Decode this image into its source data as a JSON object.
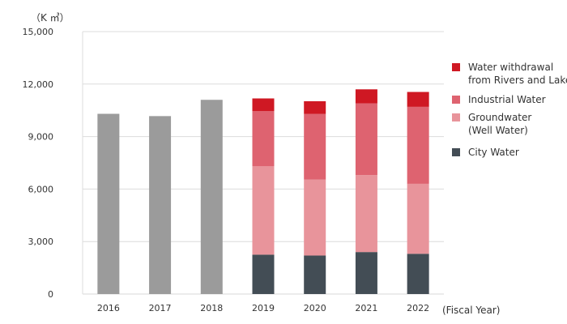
{
  "chart_data": {
    "type": "bar",
    "stacked": true,
    "y_unit_label": "（K ㎥）",
    "xlabel": "(Fiscal Year)",
    "ylim": [
      0,
      15000
    ],
    "y_ticks": [
      "15,000",
      "12,000",
      "9,000",
      "6,000",
      "3,000",
      "0"
    ],
    "y_tick_values": [
      15000,
      12000,
      9000,
      6000,
      3000,
      0
    ],
    "grid": true,
    "legend_position": "right",
    "categories": [
      "2016",
      "2017",
      "2018",
      "2019",
      "2020",
      "2021",
      "2022"
    ],
    "totals_pre_breakdown": [
      10300,
      10170,
      11100,
      null,
      null,
      null,
      null
    ],
    "total_color": "#9b9b9b",
    "series": [
      {
        "name": "City Water",
        "color": "#434d55",
        "values": [
          null,
          null,
          null,
          2250,
          2200,
          2400,
          2300
        ]
      },
      {
        "name": "Groundwater (Well Water)",
        "color": "#e8949b",
        "values": [
          null,
          null,
          null,
          5050,
          4350,
          4400,
          4000
        ]
      },
      {
        "name": "Industrial Water",
        "color": "#de6370",
        "values": [
          null,
          null,
          null,
          3150,
          3750,
          4100,
          4400
        ]
      },
      {
        "name": "Water withdrawal from Rivers and Lakes",
        "color": "#cf1823",
        "values": [
          null,
          null,
          null,
          730,
          720,
          800,
          850
        ]
      }
    ],
    "legend": [
      {
        "lines": [
          "Water withdrawal",
          "from Rivers and Lakes"
        ],
        "color": "#cf1823"
      },
      {
        "lines": [
          "Industrial Water"
        ],
        "color": "#de6370"
      },
      {
        "lines": [
          "Groundwater",
          "(Well Water)"
        ],
        "color": "#e8949b"
      },
      {
        "lines": [
          "City Water"
        ],
        "color": "#434d55"
      }
    ]
  }
}
